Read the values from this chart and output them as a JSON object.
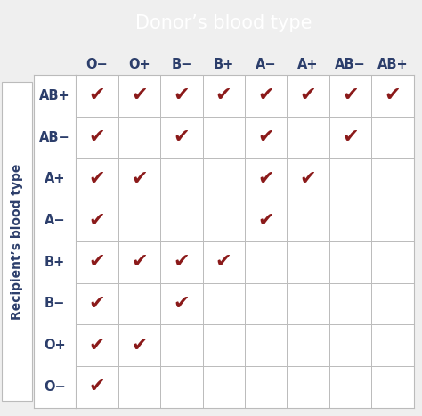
{
  "title": "Donor’s blood type",
  "ylabel": "Recipient’s blood type",
  "donor_types": [
    "O−",
    "O+",
    "B−",
    "B+",
    "A−",
    "A+",
    "AB−",
    "AB+"
  ],
  "recipient_types": [
    "AB+",
    "AB−",
    "A+",
    "A−",
    "B+",
    "B−",
    "O+",
    "O−"
  ],
  "compatibility": [
    [
      1,
      1,
      1,
      1,
      1,
      1,
      1,
      1
    ],
    [
      1,
      0,
      1,
      0,
      1,
      0,
      1,
      0
    ],
    [
      1,
      1,
      0,
      0,
      1,
      1,
      0,
      0
    ],
    [
      1,
      0,
      0,
      0,
      1,
      0,
      0,
      0
    ],
    [
      1,
      1,
      1,
      1,
      0,
      0,
      0,
      0
    ],
    [
      1,
      0,
      1,
      0,
      0,
      0,
      0,
      0
    ],
    [
      1,
      1,
      0,
      0,
      0,
      0,
      0,
      0
    ],
    [
      1,
      0,
      0,
      0,
      0,
      0,
      0,
      0
    ]
  ],
  "check_color": "#8B1A1A",
  "header_bg_color": "#A01820",
  "header_text_color": "#FFFFFF",
  "label_text_color": "#2C3E6B",
  "grid_color": "#BBBBBB",
  "bg_color": "#FFFFFF",
  "outer_bg_color": "#EFEFEF",
  "title_fontsize": 15,
  "label_fontsize": 10,
  "tick_fontsize": 10.5,
  "check_fontsize": 16,
  "ylabel_fontsize": 10
}
